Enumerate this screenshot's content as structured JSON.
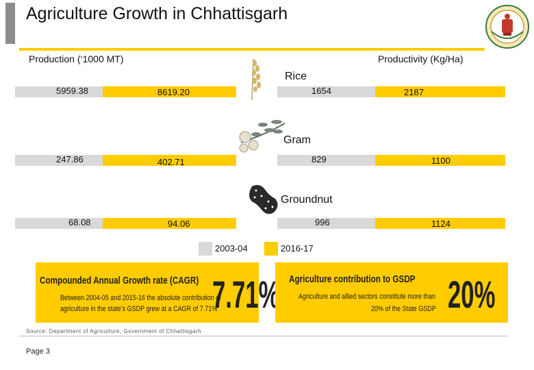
{
  "header": {
    "title": "Agriculture Growth in Chhattisgarh",
    "left_heading": "Production (‘1000 MT)",
    "right_heading": "Productivity  (Kg/Ha)"
  },
  "chart_data": {
    "type": "bar",
    "categories": [
      "Rice",
      "Gram",
      "Groundnut"
    ],
    "series": [
      {
        "name": "2003-04",
        "metric": "Production (‘1000 MT)",
        "values": [
          5959.38,
          247.86,
          68.08
        ],
        "labels": [
          "5959.38",
          "247.86",
          "68.08"
        ]
      },
      {
        "name": "2016-17",
        "metric": "Production (‘1000 MT)",
        "values": [
          8619.2,
          402.71,
          94.06
        ],
        "labels": [
          "8619.20",
          "402.71",
          "94.06"
        ]
      },
      {
        "name": "2003-04",
        "metric": "Productivity  (Kg/Ha)",
        "values": [
          1654,
          829,
          996
        ],
        "labels": [
          "1654",
          "829",
          "996"
        ]
      },
      {
        "name": "2016-17",
        "metric": "Productivity  (Kg/Ha)",
        "values": [
          2187,
          1100,
          1124
        ],
        "labels": [
          "2187",
          "1100",
          "1124"
        ]
      }
    ],
    "legend": [
      {
        "label": "2003-04",
        "color": "#d9d9d9"
      },
      {
        "label": "2016-17",
        "color": "#ffcc00"
      }
    ]
  },
  "banners": {
    "cagr": {
      "heading": "Compounded Annual Growth rate (CAGR)",
      "line1": "Between 2004-05 and 2015-16 the absolute contribution of",
      "line2": "agriculture in the state’s GSDP grew at a CAGR of 7.71%",
      "big": "7.71%"
    },
    "gsdp": {
      "heading": "Agriculture contribution to GSDP",
      "line1": "Agriculture and allied sectors constitute more than",
      "line2": "20% of the State GSDP",
      "big": "20%"
    }
  },
  "footer": {
    "source": "Source: Department of Agriculture, Government of Chhattisgarh",
    "page": "Page 3"
  },
  "colors": {
    "accent": "#ffcc00",
    "gray": "#d9d9d9",
    "title_bar": "#8c8c8c"
  }
}
